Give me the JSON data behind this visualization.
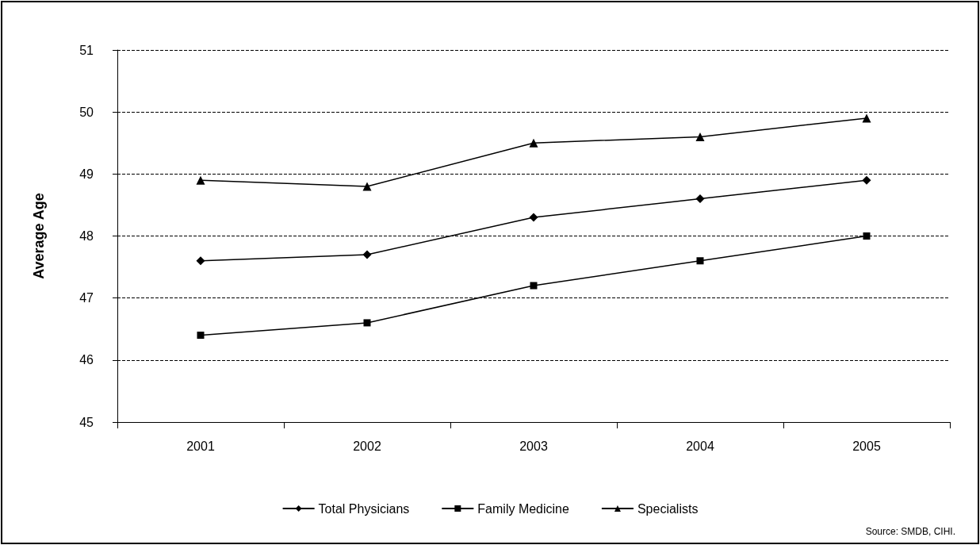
{
  "chart_data": {
    "type": "line",
    "ylabel": "Average Age",
    "categories": [
      "2001",
      "2002",
      "2003",
      "2004",
      "2005"
    ],
    "series": [
      {
        "name": "Total Physicians",
        "color": "#000000",
        "marker": "diamond",
        "values": [
          47.6,
          47.7,
          48.3,
          48.6,
          48.9
        ]
      },
      {
        "name": "Family Medicine",
        "color": "#000000",
        "marker": "square",
        "values": [
          46.4,
          46.6,
          47.2,
          47.6,
          48.0
        ]
      },
      {
        "name": "Specialists",
        "color": "#000000",
        "marker": "triangle",
        "values": [
          48.9,
          48.8,
          49.5,
          49.6,
          49.9
        ]
      }
    ],
    "ylim": [
      45,
      51
    ],
    "yticks": [
      45,
      46,
      47,
      48,
      49,
      50,
      51
    ],
    "grid": "y",
    "legend": "bottom",
    "annotations": [
      "Source: SMDB, CIHI."
    ]
  }
}
